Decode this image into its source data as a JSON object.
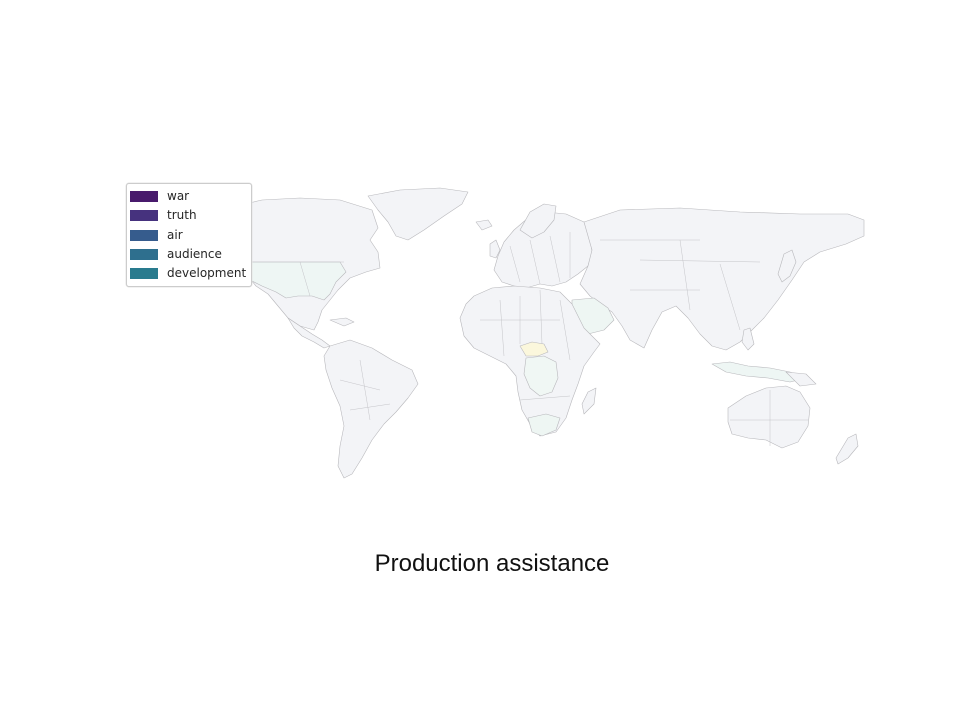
{
  "chart_data": {
    "type": "choropleth",
    "title": "Production assistance",
    "legend": {
      "placement": "upper-left",
      "entries": [
        {
          "label": "war",
          "color": "#481a6c"
        },
        {
          "label": "truth",
          "color": "#46327e"
        },
        {
          "label": "air",
          "color": "#365c8d"
        },
        {
          "label": "audience",
          "color": "#2e6f8e"
        },
        {
          "label": "development",
          "color": "#297b8e"
        }
      ]
    },
    "base_land_color": "#f3f4f7",
    "highlighted_regions": [
      {
        "region": "United States",
        "color": "#eef6f4"
      },
      {
        "region": "Central African Republic",
        "color": "#fbf7dc"
      },
      {
        "region": "Saudi Arabia",
        "color": "#eef6f3"
      },
      {
        "region": "Democratic Republic of the Congo",
        "color": "#f0f7f4"
      },
      {
        "region": "South Africa",
        "color": "#eef6f3"
      },
      {
        "region": "Indonesia",
        "color": "#eef6f4"
      }
    ]
  }
}
